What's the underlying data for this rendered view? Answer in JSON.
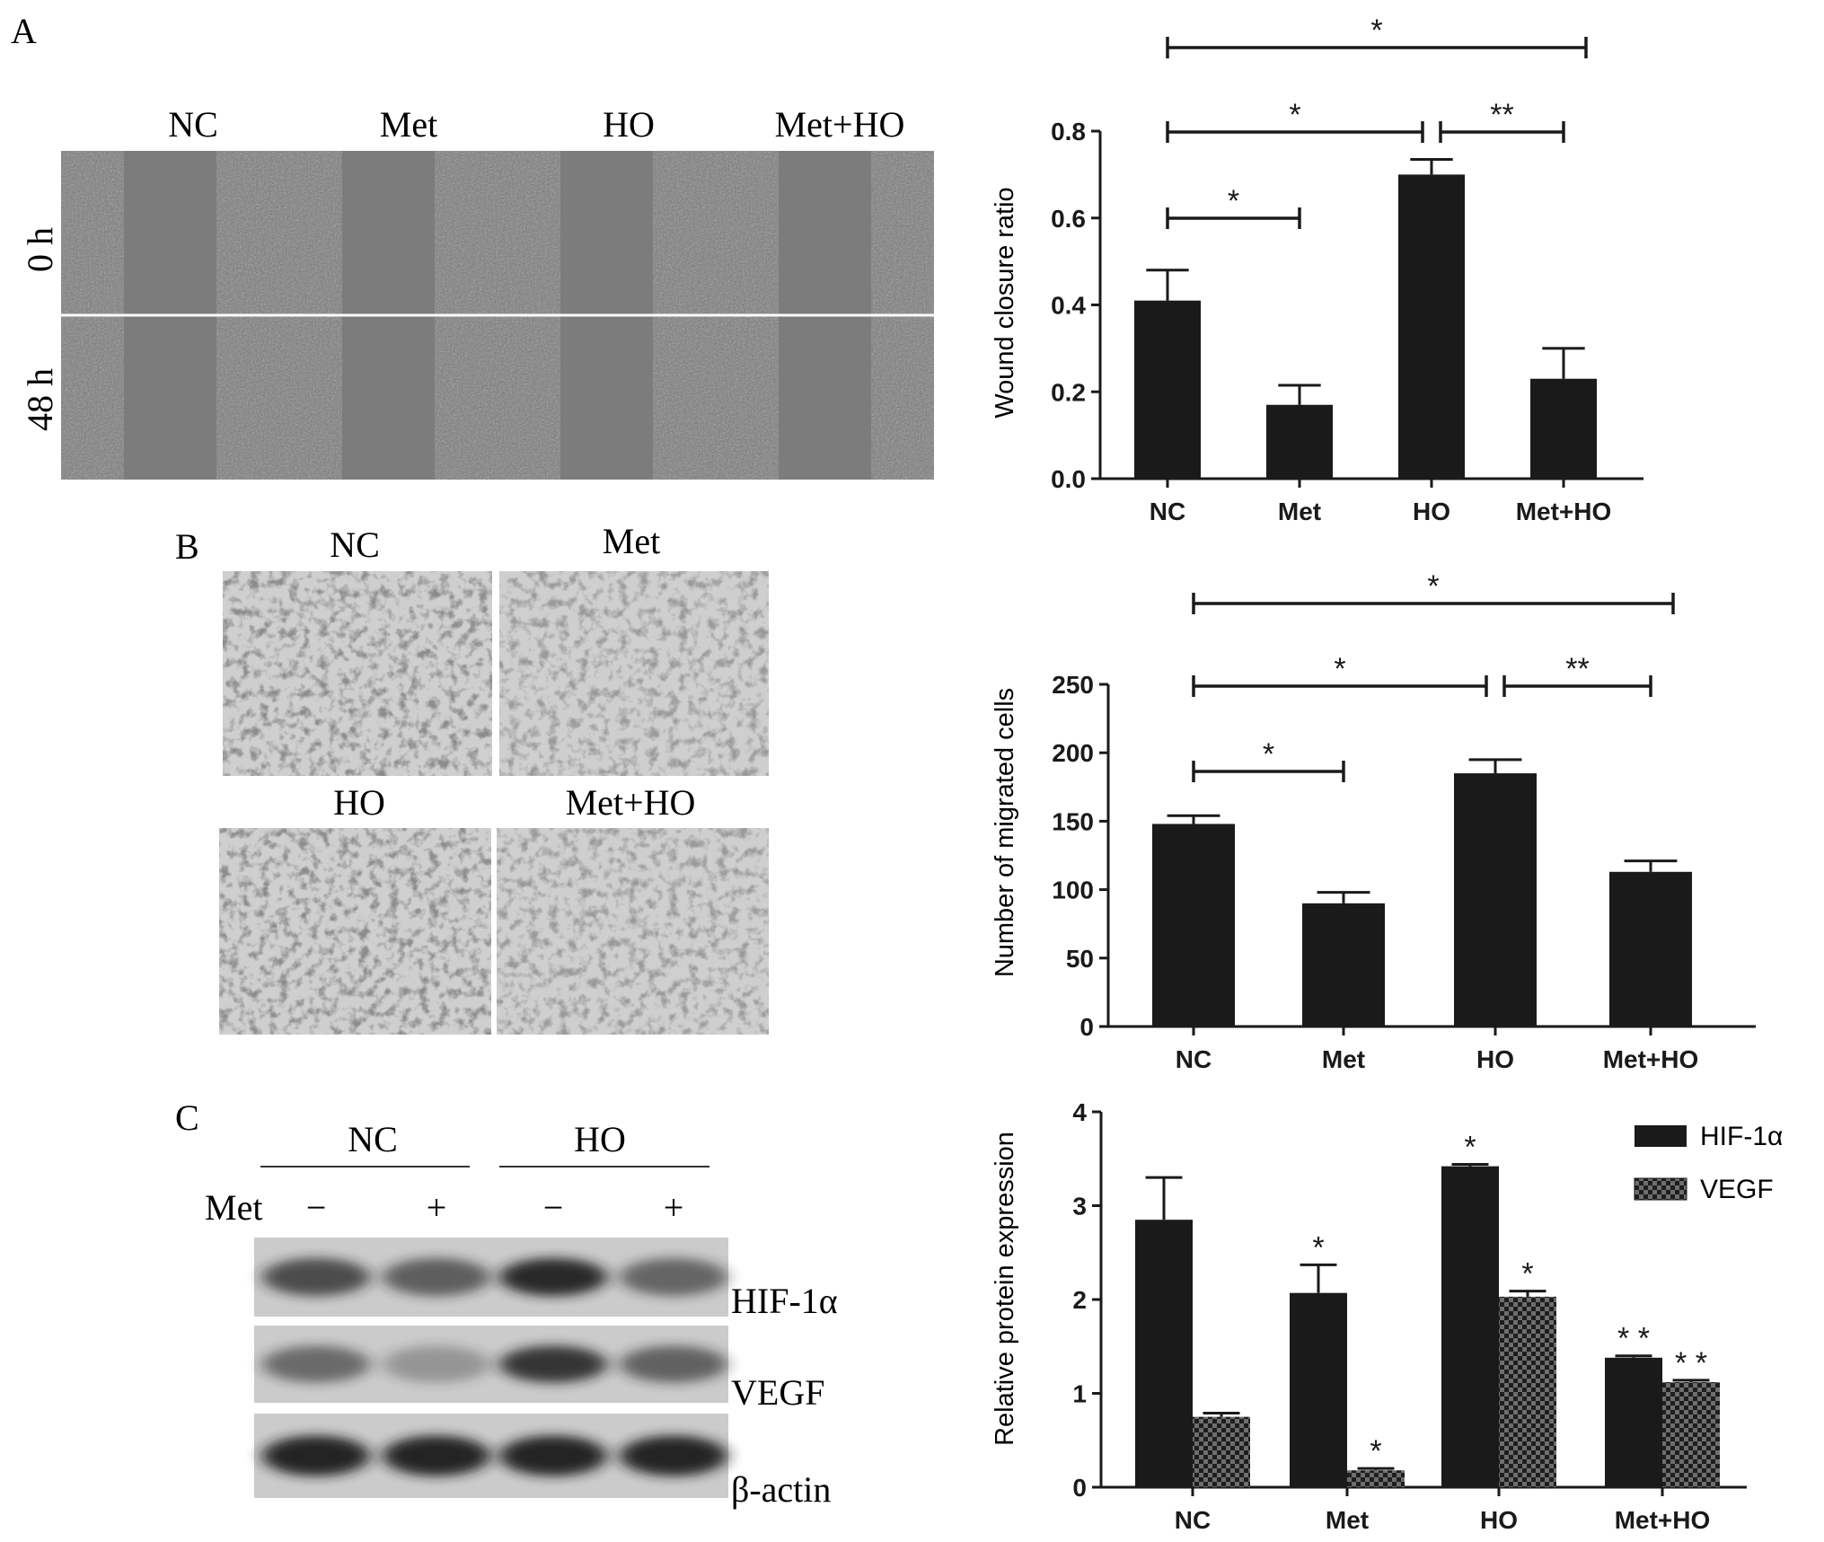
{
  "panel_a": {
    "letter": "A",
    "groups": [
      "NC",
      "Met",
      "HO",
      "Met+HO"
    ],
    "timepoints": [
      "0 h",
      "48 h"
    ]
  },
  "panel_b": {
    "letter": "B",
    "groups": [
      "NC",
      "Met",
      "HO",
      "Met+HO"
    ]
  },
  "panel_c": {
    "letter": "C",
    "group_headers": [
      "NC",
      "HO"
    ],
    "met_label": "Met",
    "met_signs": [
      "−",
      "+",
      "−",
      "+"
    ],
    "bands": [
      "HIF-1α",
      "VEGF",
      "β-actin"
    ],
    "band_intensity": {
      "HIF-1α": [
        0.72,
        0.62,
        0.92,
        0.58
      ],
      "VEGF": [
        0.55,
        0.3,
        0.85,
        0.6
      ],
      "β-actin": [
        0.95,
        0.95,
        0.95,
        0.95
      ]
    }
  },
  "colors": {
    "bar_fill": "#1a1a1a",
    "checker_light": "#6e6e6e",
    "axis": "#1a1a1a"
  },
  "chart_data": [
    {
      "type": "bar",
      "ylabel": "Wound closure ratio",
      "categories": [
        "NC",
        "Met",
        "HO",
        "Met+HO"
      ],
      "values": [
        0.41,
        0.17,
        0.7,
        0.23
      ],
      "errors": [
        0.07,
        0.045,
        0.035,
        0.07
      ],
      "ylim": [
        0,
        0.8
      ],
      "yticks": [
        "0.0",
        "0.2",
        "0.4",
        "0.6",
        "0.8"
      ],
      "significance": [
        {
          "from": 0,
          "to": 1,
          "label": "*"
        },
        {
          "from": 0,
          "to": 2,
          "label": "*"
        },
        {
          "from": 2,
          "to": 3,
          "label": "**"
        },
        {
          "from": 0,
          "to": 3,
          "label": "*"
        }
      ]
    },
    {
      "type": "bar",
      "ylabel": "Number of migrated cells",
      "categories": [
        "NC",
        "Met",
        "HO",
        "Met+HO"
      ],
      "values": [
        148,
        90,
        185,
        113
      ],
      "errors": [
        6,
        8,
        10,
        8
      ],
      "ylim": [
        0,
        250
      ],
      "yticks": [
        "0",
        "50",
        "100",
        "150",
        "200",
        "250"
      ],
      "significance": [
        {
          "from": 0,
          "to": 1,
          "label": "*"
        },
        {
          "from": 0,
          "to": 2,
          "label": "*"
        },
        {
          "from": 2,
          "to": 3,
          "label": "**"
        },
        {
          "from": 0,
          "to": 3,
          "label": "*"
        }
      ]
    },
    {
      "type": "bar",
      "ylabel": "Relative protein expression",
      "categories": [
        "NC",
        "Met",
        "HO",
        "Met+HO"
      ],
      "ylim": [
        0,
        4
      ],
      "yticks": [
        "0",
        "1",
        "2",
        "3",
        "4"
      ],
      "legend_position": "top-right",
      "series": [
        {
          "name": "HIF-1α",
          "values": [
            2.85,
            2.07,
            3.42,
            1.38
          ],
          "errors": [
            0.45,
            0.3,
            0.02,
            0.02
          ],
          "marks": [
            "",
            "*",
            "*",
            "* *"
          ]
        },
        {
          "name": "VEGF",
          "values": [
            0.75,
            0.18,
            2.03,
            1.12
          ],
          "errors": [
            0.04,
            0.02,
            0.06,
            0.02
          ],
          "marks": [
            "",
            "*",
            "*",
            "* *"
          ]
        }
      ]
    }
  ]
}
